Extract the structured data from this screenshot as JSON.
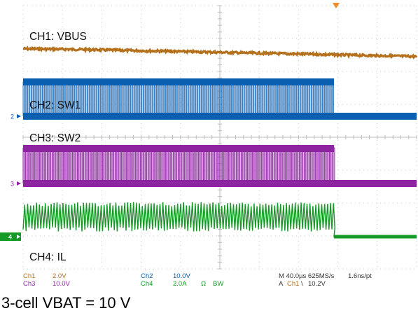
{
  "chart_data": {
    "type": "line",
    "title": "",
    "caption": "3-cell VBAT = 10 V",
    "xlim": [
      0,
      400
    ],
    "x_unit": "µs",
    "grid": true,
    "series": [
      {
        "name": "CH1: VBUS",
        "channel": "1",
        "color": "#b5701c",
        "scale": "2.0V",
        "shape": "slow-decline",
        "x": [
          0,
          50,
          100,
          150,
          200,
          250,
          300,
          350,
          400
        ],
        "values": [
          0.28,
          0.18,
          0.02,
          -0.15,
          -0.32,
          -0.5,
          -0.66,
          -0.85,
          -1.02
        ]
      },
      {
        "name": "CH2: SW1",
        "channel": "2",
        "color": "#0a5fb0",
        "scale": "10.0V",
        "shape": "switching-then-off",
        "switching_until": 316,
        "high_divs": 2.0,
        "low_divs": 0.0
      },
      {
        "name": "CH3: SW2",
        "channel": "3",
        "color": "#8d25a0",
        "scale": "10.0V",
        "shape": "switching-then-off",
        "switching_until": 316,
        "high_divs": 2.0,
        "low_divs": 0.0
      },
      {
        "name": "CH4: IL",
        "channel": "4",
        "color": "#159a26",
        "scale": "2.0A",
        "shape": "ripple-then-zero",
        "switching_until": 316,
        "ripple_divs": [
          0.4,
          1.6
        ]
      }
    ],
    "ground_markers": [
      {
        "label": "2",
        "color": "#0a5fb0"
      },
      {
        "label": "3",
        "color": "#8d25a0"
      },
      {
        "label": "4",
        "color": "#159a26",
        "boxed": true
      }
    ],
    "trigger_marker_color": "#f28c28",
    "status_bar": {
      "ch1_name": "Ch1",
      "ch1_scale": "2.0V",
      "ch3_name": "Ch3",
      "ch3_scale": "10.0V",
      "ch2_name": "Ch2",
      "ch2_scale": "10.0V",
      "ch4_name": "Ch4",
      "ch4_scale": "2.0A",
      "ohm_symbol": "Ω",
      "bw_symbol": "BW",
      "timebase": "M 40.0µs 625MS/s",
      "resolution": "1.6ns/pt",
      "trigger_prefix": "A",
      "trigger_channel": "Ch1",
      "trigger_slope": "\\",
      "trigger_level": "10.2V"
    }
  }
}
